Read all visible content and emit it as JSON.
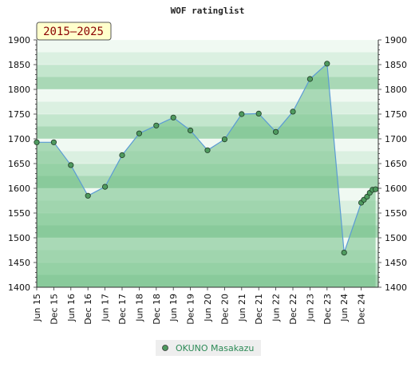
{
  "chart_data": {
    "type": "line",
    "title": "WOF ratinglist",
    "period_label": "2015–2025",
    "ylim": [
      1400,
      1900
    ],
    "yticks": [
      1400,
      1450,
      1500,
      1550,
      1600,
      1650,
      1700,
      1750,
      1800,
      1850,
      1900
    ],
    "xlim": [
      2015.5,
      2025.5
    ],
    "xtick_labels": [
      {
        "label": "Jun 15",
        "x": 2015.5
      },
      {
        "label": "Dec 15",
        "x": 2016.0
      },
      {
        "label": "Jun 16",
        "x": 2016.5
      },
      {
        "label": "Dec 16",
        "x": 2017.0
      },
      {
        "label": "Jun 17",
        "x": 2017.5
      },
      {
        "label": "Dec 17",
        "x": 2018.0
      },
      {
        "label": "Jun 18",
        "x": 2018.5
      },
      {
        "label": "Dec 18",
        "x": 2019.0
      },
      {
        "label": "Jun 19",
        "x": 2019.5
      },
      {
        "label": "Dec 19",
        "x": 2020.0
      },
      {
        "label": "Jun 20",
        "x": 2020.5
      },
      {
        "label": "Dec 20",
        "x": 2021.0
      },
      {
        "label": "Jun 21",
        "x": 2021.5
      },
      {
        "label": "Dec 21",
        "x": 2022.0
      },
      {
        "label": "Jun 22",
        "x": 2022.5
      },
      {
        "label": "Dec 22",
        "x": 2023.0
      },
      {
        "label": "Jun 23",
        "x": 2023.5
      },
      {
        "label": "Dec 23",
        "x": 2024.0
      },
      {
        "label": "Jun 24",
        "x": 2024.5
      },
      {
        "label": "Dec 24",
        "x": 2025.0
      }
    ],
    "series": [
      {
        "name": "OKUNO Masakazu",
        "points": [
          {
            "x": 2015.5,
            "y": 1693
          },
          {
            "x": 2016.0,
            "y": 1693
          },
          {
            "x": 2016.5,
            "y": 1647
          },
          {
            "x": 2017.0,
            "y": 1585
          },
          {
            "x": 2017.5,
            "y": 1603
          },
          {
            "x": 2018.0,
            "y": 1667
          },
          {
            "x": 2018.5,
            "y": 1711
          },
          {
            "x": 2019.0,
            "y": 1727
          },
          {
            "x": 2019.5,
            "y": 1743
          },
          {
            "x": 2020.0,
            "y": 1717
          },
          {
            "x": 2020.5,
            "y": 1677
          },
          {
            "x": 2021.0,
            "y": 1699
          },
          {
            "x": 2021.5,
            "y": 1750
          },
          {
            "x": 2022.0,
            "y": 1751
          },
          {
            "x": 2022.5,
            "y": 1714
          },
          {
            "x": 2023.0,
            "y": 1755
          },
          {
            "x": 2023.5,
            "y": 1821
          },
          {
            "x": 2024.0,
            "y": 1852
          },
          {
            "x": 2024.5,
            "y": 1470
          },
          {
            "x": 2025.0,
            "y": 1571
          },
          {
            "x": 2025.08,
            "y": 1577
          },
          {
            "x": 2025.17,
            "y": 1583
          },
          {
            "x": 2025.25,
            "y": 1591
          },
          {
            "x": 2025.33,
            "y": 1597
          },
          {
            "x": 2025.42,
            "y": 1598
          }
        ]
      }
    ],
    "colors": {
      "line": "#5b9bd5",
      "fill": "#6fbf85",
      "marker": "#4f9a5f",
      "band_dark": "#b4dcc0",
      "band_light": "#f1f9f3"
    },
    "legend_position": "bottom-center"
  }
}
